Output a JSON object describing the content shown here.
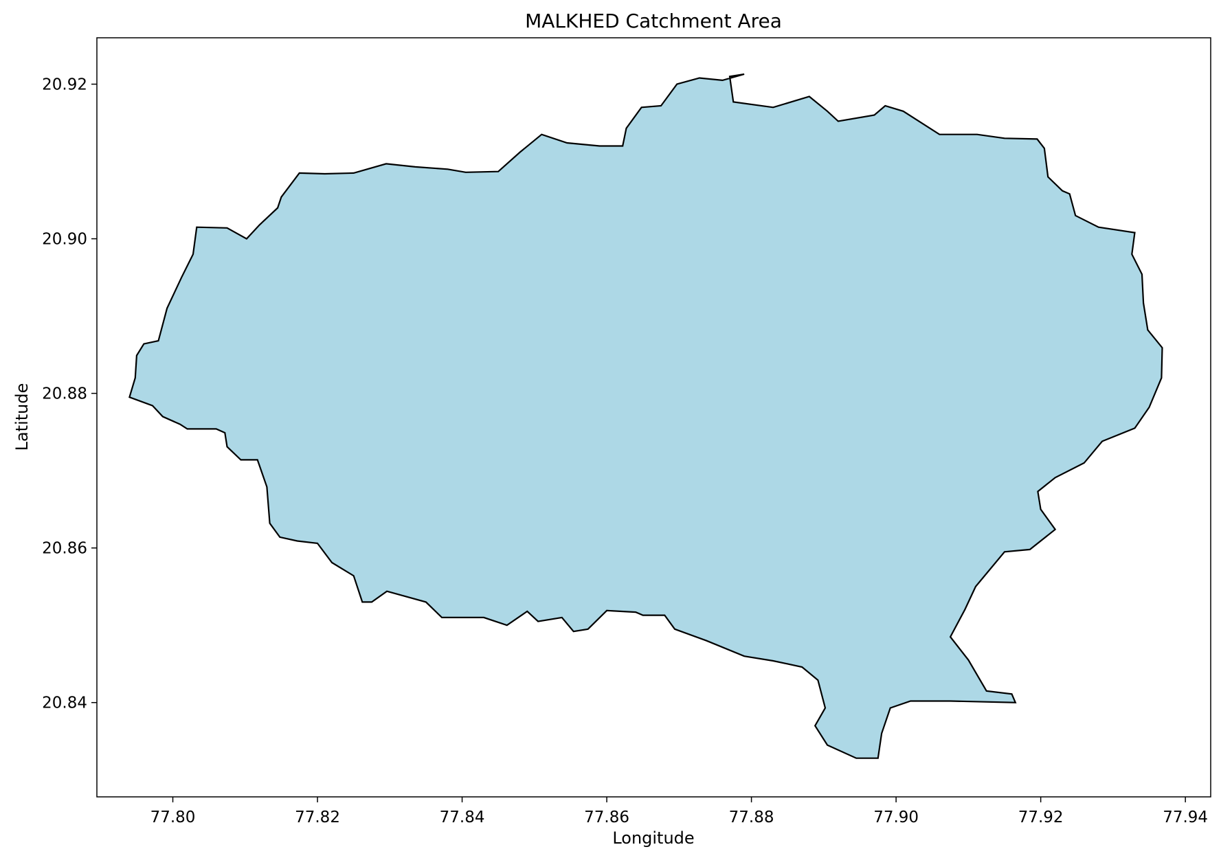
{
  "chart_data": {
    "type": "map",
    "title": "MALKHED Catchment Area",
    "xlabel": "Longitude",
    "ylabel": "Latitude",
    "xlim": [
      77.7895,
      77.9435
    ],
    "ylim": [
      20.8278,
      20.926
    ],
    "xticks": [
      77.8,
      77.82,
      77.84,
      77.86,
      77.88,
      77.9,
      77.92,
      77.94
    ],
    "yticks": [
      20.84,
      20.86,
      20.88,
      20.9,
      20.92
    ],
    "xtick_labels": [
      "77.80",
      "77.82",
      "77.84",
      "77.86",
      "77.88",
      "77.90",
      "77.92",
      "77.94"
    ],
    "ytick_labels": [
      "20.84",
      "20.86",
      "20.88",
      "20.90",
      "20.92"
    ],
    "grid": false,
    "legend": false,
    "fill_color": "#add8e6",
    "edge_color": "#000000",
    "polygon": [
      [
        77.7972,
        20.8784
      ],
      [
        77.7986,
        20.877
      ],
      [
        77.801,
        20.876
      ],
      [
        77.802,
        20.8754
      ],
      [
        77.806,
        20.8754
      ],
      [
        77.8072,
        20.8749
      ],
      [
        77.8075,
        20.8731
      ],
      [
        77.8094,
        20.8714
      ],
      [
        77.8117,
        20.8714
      ],
      [
        77.813,
        20.8679
      ],
      [
        77.8134,
        20.8632
      ],
      [
        77.8148,
        20.8614
      ],
      [
        77.8172,
        20.8609
      ],
      [
        77.82,
        20.8606
      ],
      [
        77.822,
        20.8581
      ],
      [
        77.825,
        20.8564
      ],
      [
        77.8262,
        20.853
      ],
      [
        77.8275,
        20.853
      ],
      [
        77.8296,
        20.8544
      ],
      [
        77.835,
        20.853
      ],
      [
        77.8372,
        20.851
      ],
      [
        77.843,
        20.851
      ],
      [
        77.8462,
        20.85
      ],
      [
        77.849,
        20.8518
      ],
      [
        77.8505,
        20.8505
      ],
      [
        77.8538,
        20.851
      ],
      [
        77.8554,
        20.8492
      ],
      [
        77.8574,
        20.8495
      ],
      [
        77.86,
        20.8519
      ],
      [
        77.864,
        20.8517
      ],
      [
        77.865,
        20.8513
      ],
      [
        77.868,
        20.8513
      ],
      [
        77.8694,
        20.8495
      ],
      [
        77.8738,
        20.848
      ],
      [
        77.879,
        20.846
      ],
      [
        77.883,
        20.8454
      ],
      [
        77.887,
        20.8446
      ],
      [
        77.8892,
        20.8429
      ],
      [
        77.8902,
        20.8393
      ],
      [
        77.8888,
        20.837
      ],
      [
        77.8905,
        20.8345
      ],
      [
        77.8945,
        20.8328
      ],
      [
        77.8975,
        20.8328
      ],
      [
        77.898,
        20.836
      ],
      [
        77.8992,
        20.8393
      ],
      [
        77.902,
        20.8402
      ],
      [
        77.9075,
        20.8402
      ],
      [
        77.9165,
        20.84
      ],
      [
        77.916,
        20.8411
      ],
      [
        77.9125,
        20.8415
      ],
      [
        77.91,
        20.8455
      ],
      [
        77.9075,
        20.8485
      ],
      [
        77.9095,
        20.852
      ],
      [
        77.911,
        20.855
      ],
      [
        77.915,
        20.8595
      ],
      [
        77.9185,
        20.8598
      ],
      [
        77.922,
        20.8624
      ],
      [
        77.92,
        20.865
      ],
      [
        77.9196,
        20.8673
      ],
      [
        77.922,
        20.8691
      ],
      [
        77.926,
        20.871
      ],
      [
        77.9285,
        20.8738
      ],
      [
        77.933,
        20.8755
      ],
      [
        77.935,
        20.8782
      ],
      [
        77.9367,
        20.882
      ],
      [
        77.9368,
        20.8859
      ],
      [
        77.9348,
        20.8882
      ],
      [
        77.9342,
        20.8917
      ],
      [
        77.934,
        20.8954
      ],
      [
        77.9326,
        20.898
      ],
      [
        77.933,
        20.9008
      ],
      [
        77.928,
        20.9015
      ],
      [
        77.9248,
        20.903
      ],
      [
        77.924,
        20.9058
      ],
      [
        77.923,
        20.9062
      ],
      [
        77.921,
        20.908
      ],
      [
        77.9205,
        20.9117
      ],
      [
        77.9195,
        20.9129
      ],
      [
        77.915,
        20.913
      ],
      [
        77.9112,
        20.9135
      ],
      [
        77.906,
        20.9135
      ],
      [
        77.901,
        20.9165
      ],
      [
        77.8985,
        20.9172
      ],
      [
        77.897,
        20.916
      ],
      [
        77.892,
        20.9152
      ],
      [
        77.8905,
        20.9165
      ],
      [
        77.888,
        20.9184
      ],
      [
        77.883,
        20.917
      ],
      [
        77.8775,
        20.9177
      ],
      [
        77.877,
        20.921
      ],
      [
        77.879,
        20.9213
      ],
      [
        77.876,
        20.9205
      ],
      [
        77.8728,
        20.9208
      ],
      [
        77.8697,
        20.92
      ],
      [
        77.8675,
        20.9172
      ],
      [
        77.8648,
        20.917
      ],
      [
        77.8627,
        20.9143
      ],
      [
        77.8622,
        20.912
      ],
      [
        77.859,
        20.912
      ],
      [
        77.8545,
        20.9124
      ],
      [
        77.851,
        20.9135
      ],
      [
        77.848,
        20.9112
      ],
      [
        77.845,
        20.9087
      ],
      [
        77.8405,
        20.9086
      ],
      [
        77.838,
        20.909
      ],
      [
        77.8335,
        20.9093
      ],
      [
        77.8295,
        20.9097
      ],
      [
        77.825,
        20.9085
      ],
      [
        77.821,
        20.9084
      ],
      [
        77.8175,
        20.9085
      ],
      [
        77.815,
        20.9054
      ],
      [
        77.8145,
        20.904
      ],
      [
        77.812,
        20.9018
      ],
      [
        77.8102,
        20.9
      ],
      [
        77.8075,
        20.9014
      ],
      [
        77.8033,
        20.9015
      ],
      [
        77.8028,
        20.898
      ],
      [
        77.8012,
        20.895
      ],
      [
        77.7992,
        20.891
      ],
      [
        77.798,
        20.8868
      ],
      [
        77.796,
        20.8864
      ],
      [
        77.795,
        20.8849
      ],
      [
        77.7948,
        20.882
      ],
      [
        77.794,
        20.8795
      ],
      [
        77.7972,
        20.8784
      ]
    ]
  }
}
